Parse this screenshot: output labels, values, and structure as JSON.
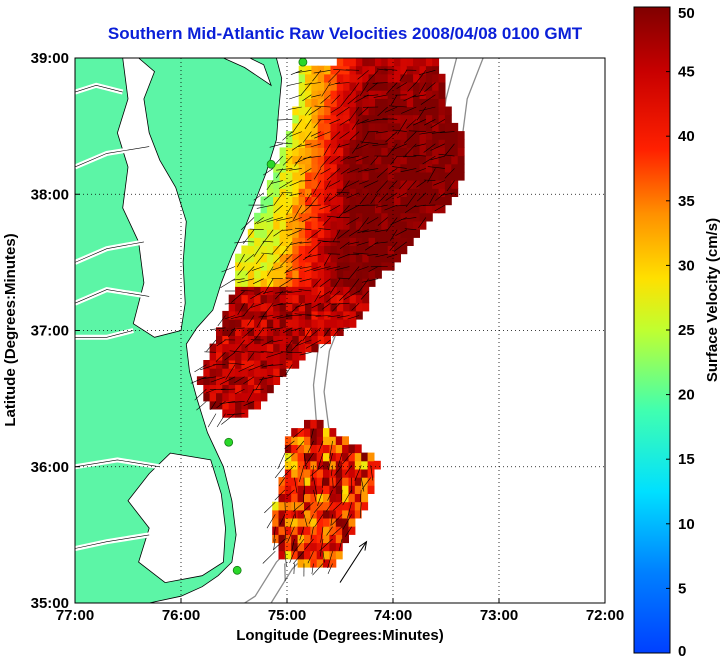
{
  "chart_data": {
    "type": "heatmap",
    "title": "Southern Mid-Atlantic Raw Velocities 2008/04/08 0100 GMT",
    "xlabel": "Longitude (Degrees:Minutes)",
    "ylabel": "Latitude (Degrees:Minutes)",
    "colorbar_label": "Surface Velocity (cm/s)",
    "xlim": [
      -77,
      -72
    ],
    "ylim": [
      35,
      39
    ],
    "clim": [
      0,
      50
    ],
    "grid": true,
    "x_ticks": [
      {
        "value": -77,
        "label": "77:00"
      },
      {
        "value": -76,
        "label": "76:00"
      },
      {
        "value": -75,
        "label": "75:00"
      },
      {
        "value": -74,
        "label": "74:00"
      },
      {
        "value": -73,
        "label": "73:00"
      },
      {
        "value": -72,
        "label": "72:00"
      }
    ],
    "y_ticks": [
      {
        "value": 35,
        "label": "35:00"
      },
      {
        "value": 36,
        "label": "36:00"
      },
      {
        "value": 37,
        "label": "37:00"
      },
      {
        "value": 38,
        "label": "38:00"
      },
      {
        "value": 39,
        "label": "39:00"
      }
    ],
    "colorbar_ticks": [
      "0",
      "5",
      "10",
      "15",
      "20",
      "25",
      "30",
      "35",
      "40",
      "45",
      "50"
    ],
    "colors": {
      "land": "#5cf5a6",
      "title": "#0a1fd8",
      "radar_sites": "#2ad82a",
      "isobaths": "#8c8c8c"
    },
    "radar_sites": [
      {
        "lon": -74.85,
        "lat": 38.97
      },
      {
        "lon": -75.15,
        "lat": 38.22
      },
      {
        "lon": -75.55,
        "lat": 36.18
      },
      {
        "lon": -75.47,
        "lat": 35.24
      }
    ],
    "velocity_regions": [
      {
        "name": "north",
        "speed_range": [
          15,
          50
        ],
        "outline": [
          [
            -74.9,
            38.92
          ],
          [
            -74.35,
            38.95
          ],
          [
            -73.6,
            38.97
          ],
          [
            -73.5,
            38.6
          ],
          [
            -73.35,
            38.35
          ],
          [
            -73.4,
            38.0
          ],
          [
            -73.7,
            37.75
          ],
          [
            -73.9,
            37.55
          ],
          [
            -74.1,
            37.4
          ],
          [
            -74.25,
            37.25
          ],
          [
            -74.3,
            37.1
          ],
          [
            -74.45,
            36.97
          ],
          [
            -74.7,
            36.85
          ],
          [
            -74.9,
            36.75
          ],
          [
            -75.1,
            36.6
          ],
          [
            -75.25,
            36.45
          ],
          [
            -75.5,
            36.3
          ],
          [
            -75.75,
            36.4
          ],
          [
            -75.85,
            36.6
          ],
          [
            -75.75,
            36.8
          ],
          [
            -75.65,
            37.0
          ],
          [
            -75.55,
            37.25
          ],
          [
            -75.5,
            37.5
          ],
          [
            -75.35,
            37.75
          ],
          [
            -75.2,
            38.05
          ],
          [
            -75.05,
            38.35
          ],
          [
            -74.95,
            38.6
          ]
        ]
      },
      {
        "name": "south",
        "speed_range": [
          20,
          50
        ],
        "outline": [
          [
            -74.75,
            36.3
          ],
          [
            -74.5,
            36.2
          ],
          [
            -74.15,
            36.0
          ],
          [
            -74.25,
            35.75
          ],
          [
            -74.45,
            35.45
          ],
          [
            -74.6,
            35.2
          ],
          [
            -74.85,
            35.25
          ],
          [
            -75.1,
            35.3
          ],
          [
            -75.2,
            35.55
          ],
          [
            -75.1,
            35.8
          ],
          [
            -75.05,
            36.05
          ],
          [
            -75.0,
            36.25
          ]
        ]
      }
    ],
    "example_vector": {
      "lon_start": -74.5,
      "lat_start": 35.15,
      "lon_end": -74.25,
      "lat_end": 35.45
    }
  }
}
